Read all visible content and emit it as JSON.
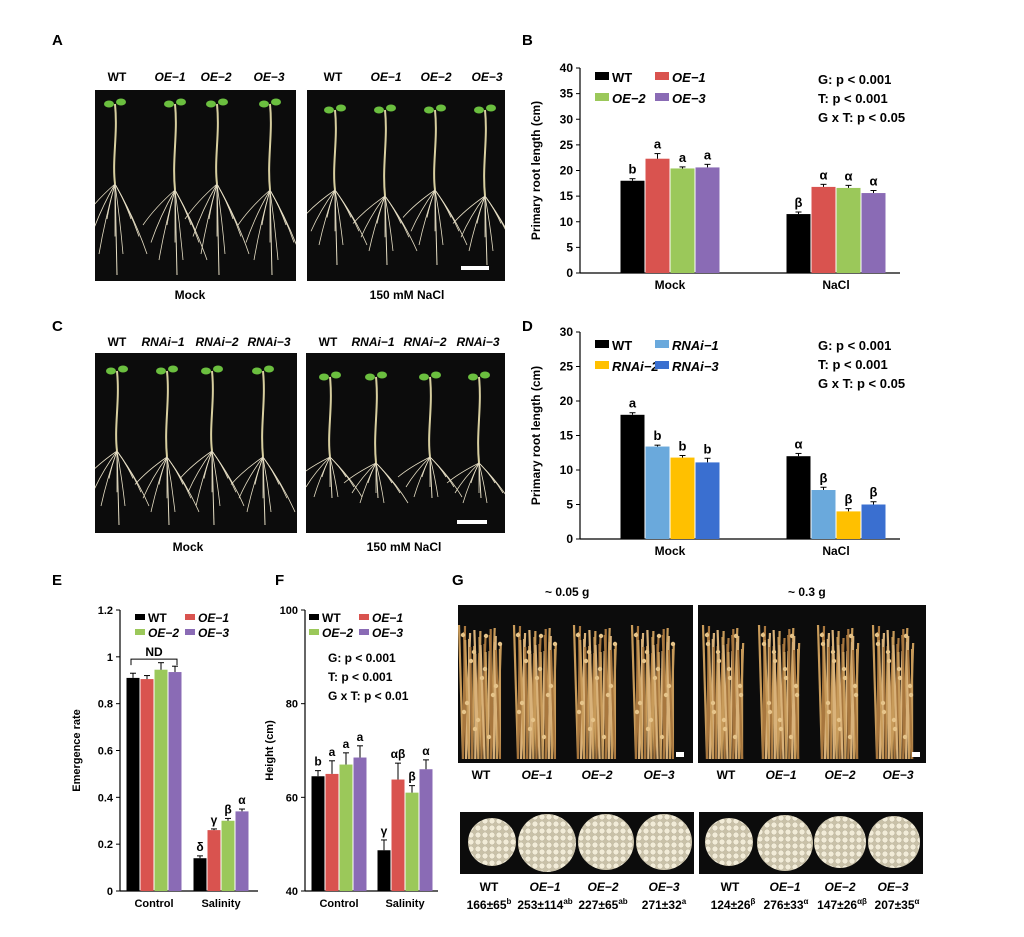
{
  "panels": {
    "A": {
      "letter": "A",
      "left_headers": [
        "WT",
        "OE−1",
        "OE−2",
        "OE−3"
      ],
      "right_headers": [
        "WT",
        "OE−1",
        "OE−2",
        "OE−3"
      ],
      "left_caption": "Mock",
      "right_caption": "150 mM NaCl"
    },
    "C": {
      "letter": "C",
      "left_headers": [
        "WT",
        "RNAi−1",
        "RNAi−2",
        "RNAi−3"
      ],
      "right_headers": [
        "WT",
        "RNAi−1",
        "RNAi−2",
        "RNAi−3"
      ],
      "left_caption": "Mock",
      "right_caption": "150 mM NaCl"
    },
    "G": {
      "letter": "G",
      "left_title": "~ 0.05 g",
      "right_title": "~ 0.3 g",
      "plant_labels_left": [
        "WT",
        "OE−1",
        "OE−2",
        "OE−3"
      ],
      "plant_labels_right": [
        "WT",
        "OE−1",
        "OE−2",
        "OE−3"
      ],
      "seed_labels_left": [
        "WT",
        "OE−1",
        "OE−2",
        "OE−3"
      ],
      "seed_labels_right": [
        "WT",
        "OE−1",
        "OE−2",
        "OE−3"
      ],
      "seed_values_left": [
        {
          "value": "166±65",
          "sup": "b"
        },
        {
          "value": "253±114",
          "sup": "ab"
        },
        {
          "value": "227±65",
          "sup": "ab"
        },
        {
          "value": "271±32",
          "sup": "a"
        }
      ],
      "seed_values_right": [
        {
          "value": "124±26",
          "sup": "β"
        },
        {
          "value": "276±33",
          "sup": "α"
        },
        {
          "value": "147±26",
          "sup": "αβ"
        },
        {
          "value": "207±35",
          "sup": "α"
        }
      ]
    }
  },
  "colors": {
    "WT": "#000000",
    "OE-1": "#d9534f",
    "OE-2": "#9bc85a",
    "OE-3": "#8a6bb5",
    "RNAi-1": "#6aa9dc",
    "RNAi-2": "#ffc000",
    "RNAi-3": "#3a6fd0"
  },
  "chart_data": [
    {
      "panel": "B",
      "type": "bar",
      "categories": [
        "Mock",
        "NaCl"
      ],
      "ylabel": "Primary root length (cm)",
      "xlabel": "",
      "ylim": [
        0,
        40
      ],
      "yticks": [
        0,
        5,
        10,
        15,
        20,
        25,
        30,
        35,
        40
      ],
      "stats": [
        "G: p < 0.001",
        "T: p < 0.001",
        "G x T: p < 0.05"
      ],
      "legend_position": "top-left",
      "series": [
        {
          "name": "WT",
          "color_key": "WT",
          "values": [
            18.0,
            11.5
          ],
          "errors": [
            0.4,
            0.4
          ],
          "labels": [
            "b",
            "β"
          ]
        },
        {
          "name": "OE−1",
          "color_key": "OE-1",
          "values": [
            22.3,
            16.8
          ],
          "errors": [
            1.0,
            0.5
          ],
          "labels": [
            "a",
            "α"
          ]
        },
        {
          "name": "OE−2",
          "color_key": "OE-2",
          "values": [
            20.4,
            16.6
          ],
          "errors": [
            0.3,
            0.5
          ],
          "labels": [
            "a",
            "α"
          ]
        },
        {
          "name": "OE−3",
          "color_key": "OE-3",
          "values": [
            20.6,
            15.6
          ],
          "errors": [
            0.6,
            0.5
          ],
          "labels": [
            "a",
            "α"
          ]
        }
      ]
    },
    {
      "panel": "D",
      "type": "bar",
      "categories": [
        "Mock",
        "NaCl"
      ],
      "ylabel": "Primary root length (cm)",
      "xlabel": "",
      "ylim": [
        0,
        30
      ],
      "yticks": [
        0,
        5,
        10,
        15,
        20,
        25,
        30
      ],
      "stats": [
        "G: p < 0.001",
        "T: p < 0.001",
        "G x T: p < 0.05"
      ],
      "legend_position": "top-left",
      "series": [
        {
          "name": "WT",
          "color_key": "WT",
          "values": [
            18.0,
            12.0
          ],
          "errors": [
            0.3,
            0.4
          ],
          "labels": [
            "a",
            "α"
          ]
        },
        {
          "name": "RNAi−1",
          "color_key": "RNAi-1",
          "values": [
            13.4,
            7.1
          ],
          "errors": [
            0.2,
            0.4
          ],
          "labels": [
            "b",
            "β"
          ]
        },
        {
          "name": "RNAi−2",
          "color_key": "RNAi-2",
          "values": [
            11.8,
            4.0
          ],
          "errors": [
            0.3,
            0.4
          ],
          "labels": [
            "b",
            "β"
          ]
        },
        {
          "name": "RNAi−3",
          "color_key": "RNAi-3",
          "values": [
            11.1,
            5.0
          ],
          "errors": [
            0.6,
            0.4
          ],
          "labels": [
            "b",
            "β"
          ]
        }
      ]
    },
    {
      "panel": "E",
      "type": "bar",
      "categories": [
        "Control",
        "Salinity"
      ],
      "ylabel": "Emergence rate",
      "xlabel": "",
      "ylim": [
        0,
        1.2
      ],
      "yticks": [
        0,
        0.2,
        0.4,
        0.6,
        0.8,
        1,
        1.2
      ],
      "annotation": "ND",
      "legend_position": "top",
      "series": [
        {
          "name": "WT",
          "color_key": "WT",
          "values": [
            0.91,
            0.14
          ],
          "errors": [
            0.02,
            0.01
          ],
          "labels": [
            "",
            "δ"
          ]
        },
        {
          "name": "OE−1",
          "color_key": "OE-1",
          "values": [
            0.905,
            0.26
          ],
          "errors": [
            0.015,
            0.005
          ],
          "labels": [
            "",
            "γ"
          ]
        },
        {
          "name": "OE−2",
          "color_key": "OE-2",
          "values": [
            0.945,
            0.3
          ],
          "errors": [
            0.03,
            0.01
          ],
          "labels": [
            "",
            "β"
          ]
        },
        {
          "name": "OE−3",
          "color_key": "OE-3",
          "values": [
            0.935,
            0.34
          ],
          "errors": [
            0.025,
            0.01
          ],
          "labels": [
            "",
            "α"
          ]
        }
      ]
    },
    {
      "panel": "F",
      "type": "bar",
      "categories": [
        "Control",
        "Salinity"
      ],
      "ylabel": "Height (cm)",
      "xlabel": "",
      "ylim": [
        40,
        100
      ],
      "yticks": [
        40,
        60,
        80,
        100
      ],
      "stats": [
        "G: p < 0.001",
        "T: p < 0.001",
        "G x T: p < 0.01"
      ],
      "legend_position": "top",
      "series": [
        {
          "name": "WT",
          "color_key": "WT",
          "values": [
            64.5,
            48.7
          ],
          "errors": [
            1.2,
            2.2
          ],
          "labels": [
            "b",
            "γ"
          ]
        },
        {
          "name": "OE−1",
          "color_key": "OE-1",
          "values": [
            65.0,
            63.8
          ],
          "errors": [
            2.8,
            3.5
          ],
          "labels": [
            "a",
            "αβ"
          ]
        },
        {
          "name": "OE−2",
          "color_key": "OE-2",
          "values": [
            67.0,
            61.0
          ],
          "errors": [
            2.5,
            1.5
          ],
          "labels": [
            "a",
            "β"
          ]
        },
        {
          "name": "OE−3",
          "color_key": "OE-3",
          "values": [
            68.5,
            66.0
          ],
          "errors": [
            2.5,
            2.0
          ],
          "labels": [
            "a",
            "α"
          ]
        }
      ]
    }
  ]
}
